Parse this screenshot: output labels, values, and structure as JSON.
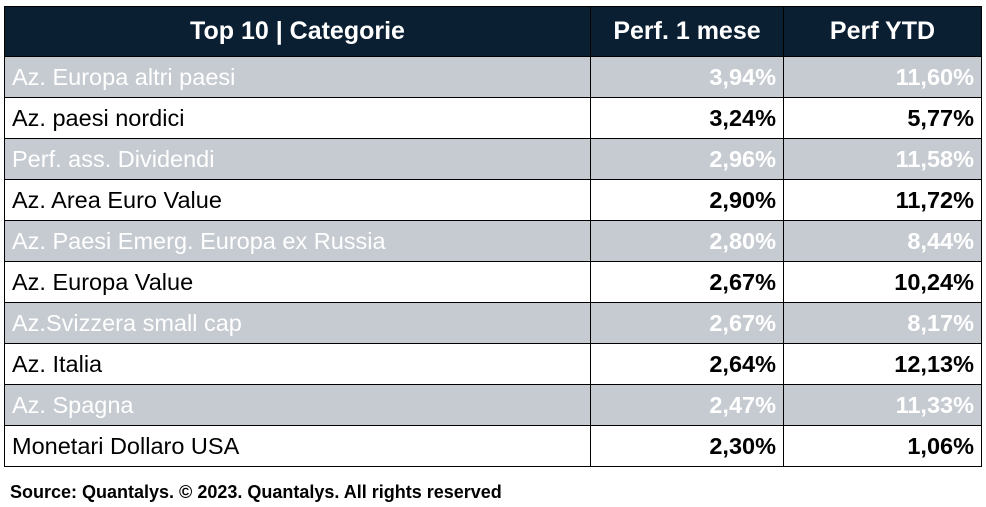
{
  "chart_data": {
    "type": "table",
    "columns": [
      "Top 10 | Categorie",
      "Perf. 1 mese",
      "Perf YTD"
    ],
    "rows": [
      {
        "category": "Az. Europa altri paesi",
        "perf_1_mese": "3,94%",
        "perf_ytd": "11,60%"
      },
      {
        "category": "Az. paesi nordici",
        "perf_1_mese": "3,24%",
        "perf_ytd": "5,77%"
      },
      {
        "category": "Perf. ass. Dividendi",
        "perf_1_mese": "2,96%",
        "perf_ytd": "11,58%"
      },
      {
        "category": "Az. Area Euro Value",
        "perf_1_mese": "2,90%",
        "perf_ytd": "11,72%"
      },
      {
        "category": "Az. Paesi Emerg. Europa ex Russia",
        "perf_1_mese": "2,80%",
        "perf_ytd": "8,44%"
      },
      {
        "category": "Az. Europa Value",
        "perf_1_mese": "2,67%",
        "perf_ytd": "10,24%"
      },
      {
        "category": "Az.Svizzera small cap",
        "perf_1_mese": "2,67%",
        "perf_ytd": "8,17%"
      },
      {
        "category": "Az. Italia",
        "perf_1_mese": "2,64%",
        "perf_ytd": "12,13%"
      },
      {
        "category": "Az. Spagna",
        "perf_1_mese": "2,47%",
        "perf_ytd": "11,33%"
      },
      {
        "category": "Monetari Dollaro USA",
        "perf_1_mese": "2,30%",
        "perf_ytd": "1,06%"
      }
    ]
  },
  "source": "Source: Quantalys. © 2023. Quantalys. All rights reserved",
  "colors": {
    "header_bg": "#0b1f33",
    "shaded_row_bg": "#c6cbd1",
    "shaded_row_text": "#ffffff",
    "plain_row_text": "#000000"
  }
}
